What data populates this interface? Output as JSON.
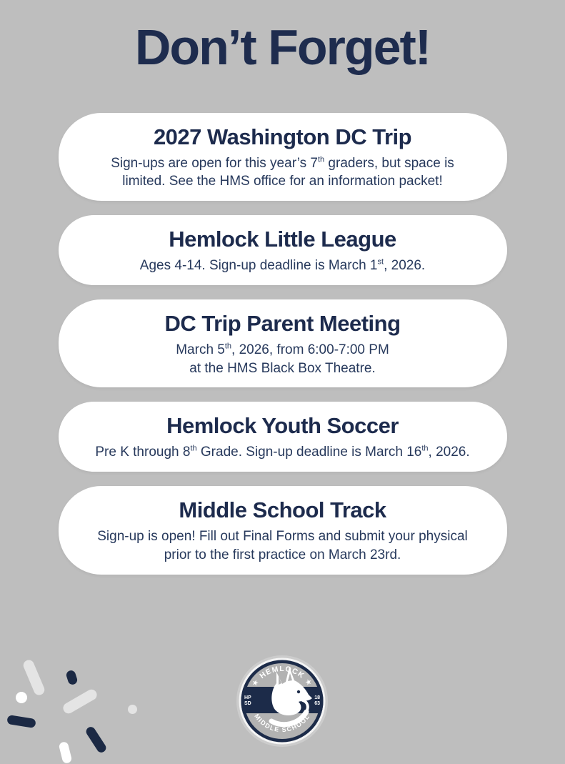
{
  "page": {
    "title": "Don’t Forget!"
  },
  "colors": {
    "background": "#bebebe",
    "navy": "#1e2c4e",
    "card_background": "#ffffff",
    "badge_navy": "#1c2b49",
    "badge_gray": "#b2b2b2"
  },
  "cards": [
    {
      "title": "2027 Washington DC Trip",
      "body": [
        {
          "text": "Sign-ups are open for this year’s 7"
        },
        {
          "text": "th",
          "sup": true
        },
        {
          "text": " graders, but space is"
        },
        {
          "br": true
        },
        {
          "text": "limited. See the HMS office for an information packet!"
        }
      ]
    },
    {
      "title": "Hemlock Little League",
      "body": [
        {
          "text": "Ages 4-14. Sign-up deadline is March 1"
        },
        {
          "text": "st",
          "sup": true
        },
        {
          "text": ", 2026."
        }
      ]
    },
    {
      "title": "DC Trip Parent Meeting",
      "body": [
        {
          "text": "March 5"
        },
        {
          "text": "th",
          "sup": true
        },
        {
          "text": ", 2026, from 6:00-7:00 PM"
        },
        {
          "br": true
        },
        {
          "text": "at the HMS Black Box Theatre."
        }
      ]
    },
    {
      "title": "Hemlock Youth Soccer",
      "body": [
        {
          "text": "Pre K through 8"
        },
        {
          "text": "th",
          "sup": true
        },
        {
          "text": " Grade. Sign-up deadline is March 16"
        },
        {
          "text": "th",
          "sup": true
        },
        {
          "text": ", 2026."
        }
      ]
    },
    {
      "title": "Middle School Track",
      "body": [
        {
          "text": "Sign-up is open! Fill out Final Forms and submit your physical"
        },
        {
          "br": true
        },
        {
          "text": "prior to the first practice on March 23rd."
        }
      ]
    }
  ],
  "logo": {
    "top_arc_text": "★ HEMLOCK ★",
    "bottom_arc_text": "MIDDLE SCHOOL",
    "left_line1": "HP",
    "left_line2": "SD",
    "right_line1": "18",
    "right_line2": "63"
  }
}
